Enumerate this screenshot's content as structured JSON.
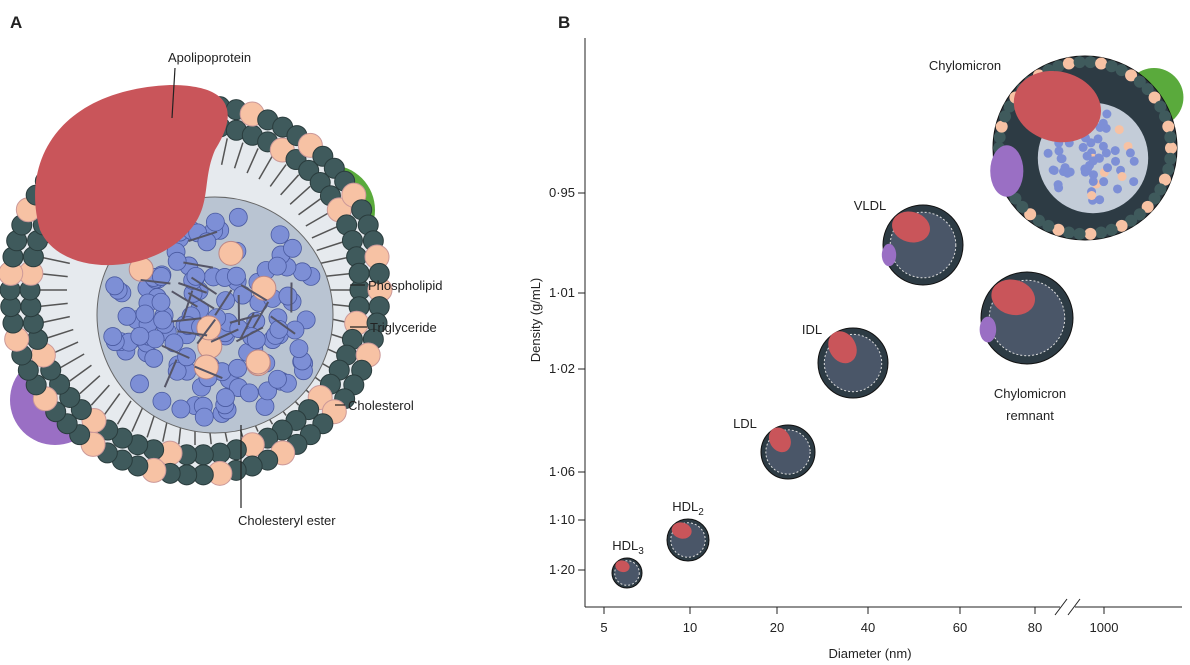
{
  "panel_a": {
    "label": "A",
    "apolipoprotein": "Apolipoprotein",
    "phospholipid": "Phospholipid",
    "triglyceride": "Triglyceride",
    "cholesterol": "Cholesterol",
    "cholesteryl_ester": "Cholesteryl ester"
  },
  "panel_b": {
    "label": "B",
    "y_axis_title": "Density (g/mL)",
    "x_axis_title": "Diameter (nm)",
    "y_ticks": [
      "0·95",
      "1·01",
      "1·02",
      "1·06",
      "1·10",
      "1·20"
    ],
    "x_ticks": [
      "5",
      "10",
      "20",
      "40",
      "60",
      "80",
      "1000"
    ],
    "particles": [
      {
        "name": "Chylomicron"
      },
      {
        "name": "VLDL"
      },
      {
        "name": [
          "Chylomicron",
          "remnant"
        ]
      },
      {
        "name": "IDL"
      },
      {
        "name": "LDL"
      },
      {
        "name": "HDL",
        "sub": "2"
      },
      {
        "name": "HDL",
        "sub": "3"
      }
    ]
  }
}
